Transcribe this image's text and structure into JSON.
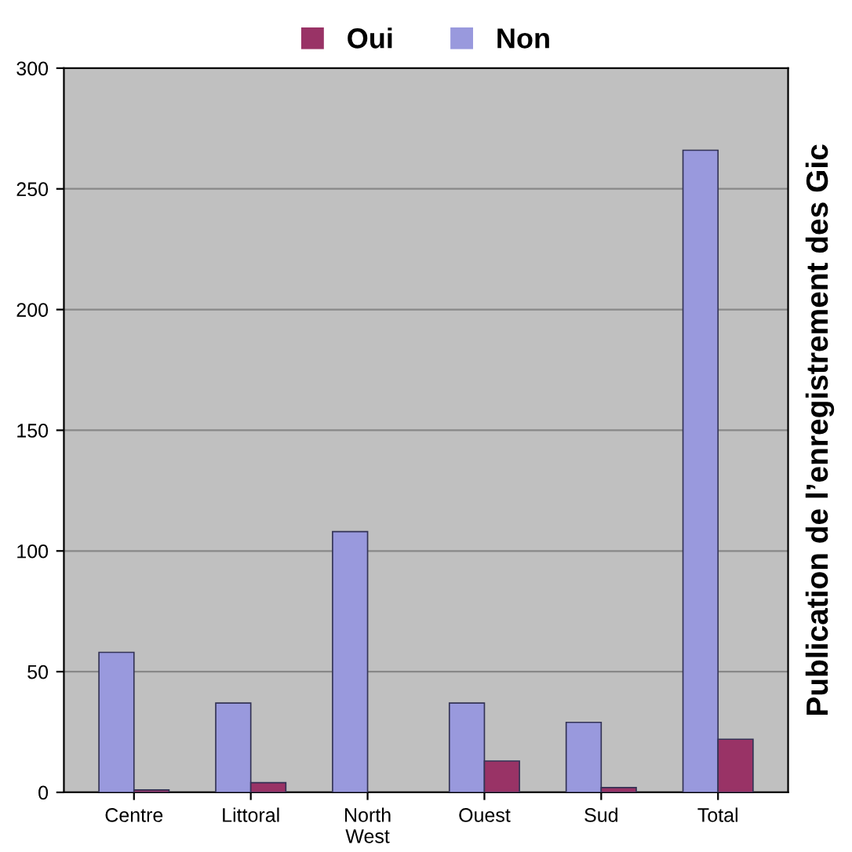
{
  "chart_data": {
    "type": "bar",
    "ylabel": "Publication de l’enregistrement des Gic",
    "categories": [
      "Centre",
      "Littoral",
      "North\nWest",
      "Ouest",
      "Sud",
      "Total"
    ],
    "series": [
      {
        "name": "Non",
        "color": "#9999dd",
        "values": [
          58,
          37,
          108,
          37,
          29,
          266
        ]
      },
      {
        "name": "Oui",
        "color": "#993366",
        "values": [
          1,
          4,
          null,
          13,
          2,
          22
        ]
      }
    ],
    "ylim": [
      0,
      300
    ],
    "yticks": [
      0,
      50,
      100,
      150,
      200,
      250,
      300
    ],
    "grid": "y",
    "legend": "top"
  }
}
